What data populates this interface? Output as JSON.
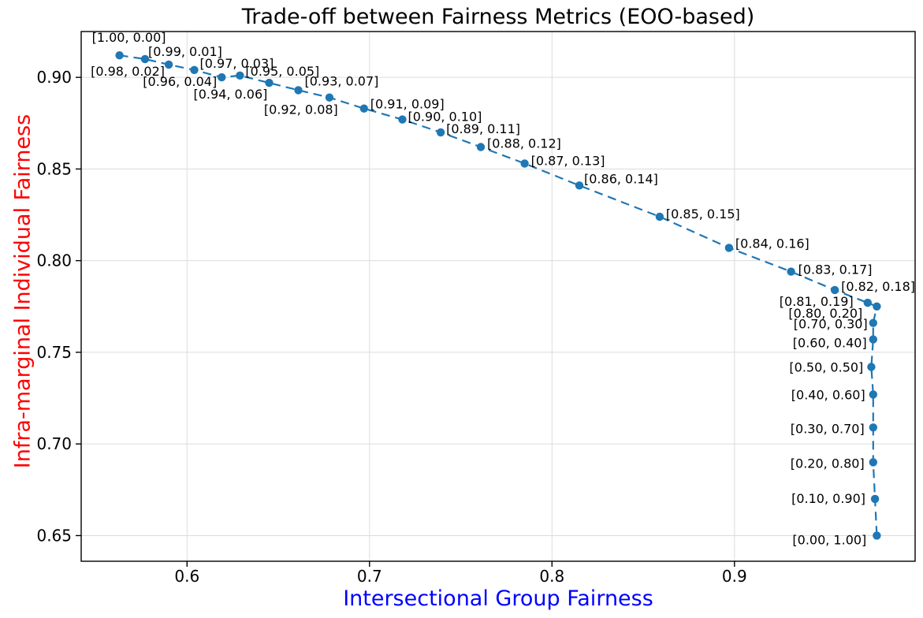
{
  "chart_data": {
    "type": "scatter",
    "title": "Trade-off between Fairness Metrics (EOO-based)",
    "xlabel": "Intersectional Group Fairness",
    "ylabel": "Infra-marginal Individual Fairness",
    "xlabel_color": "#0000ff",
    "ylabel_color": "#ff0000",
    "line_color": "#1f77b4",
    "marker_color": "#1f77b4",
    "annotation_color": "#000000",
    "grid": true,
    "grid_color": "#dcdcdc",
    "line_style": "dashed",
    "legend": "none",
    "xlim": [
      0.542,
      0.999
    ],
    "ylim": [
      0.636,
      0.925
    ],
    "x_ticks": [
      0.6,
      0.7,
      0.8,
      0.9
    ],
    "x_tick_labels": [
      "0.6",
      "0.7",
      "0.8",
      "0.9"
    ],
    "y_ticks": [
      0.65,
      0.7,
      0.75,
      0.8,
      0.85,
      0.9
    ],
    "y_tick_labels": [
      "0.65",
      "0.70",
      "0.75",
      "0.80",
      "0.85",
      "0.90"
    ],
    "points": [
      {
        "label": "[1.00, 0.00]",
        "weights": [
          1.0,
          0.0
        ],
        "x": 0.563,
        "y": 0.912,
        "label_offset": [
          -35,
          -30
        ]
      },
      {
        "label": "[0.99, 0.01]",
        "weights": [
          0.99,
          0.01
        ],
        "x": 0.577,
        "y": 0.91,
        "label_offset": [
          4,
          -17
        ]
      },
      {
        "label": "[0.98, 0.02]",
        "weights": [
          0.98,
          0.02
        ],
        "x": 0.59,
        "y": 0.907,
        "label_offset": [
          -99,
          1
        ]
      },
      {
        "label": "[0.97, 0.03]",
        "weights": [
          0.97,
          0.03
        ],
        "x": 0.604,
        "y": 0.904,
        "label_offset": [
          7,
          -16
        ]
      },
      {
        "label": "[0.96, 0.04]",
        "weights": [
          0.96,
          0.04
        ],
        "x": 0.619,
        "y": 0.9,
        "label_offset": [
          -100,
          -2
        ]
      },
      {
        "label": "[0.95, 0.05]",
        "weights": [
          0.95,
          0.05
        ],
        "x": 0.629,
        "y": 0.901,
        "label_offset": [
          7,
          -13
        ]
      },
      {
        "label": "[0.94, 0.06]",
        "weights": [
          0.94,
          0.06
        ],
        "x": 0.645,
        "y": 0.897,
        "label_offset": [
          -96,
          7
        ]
      },
      {
        "label": "[0.93, 0.07]",
        "weights": [
          0.93,
          0.07
        ],
        "x": 0.661,
        "y": 0.893,
        "label_offset": [
          8,
          -19
        ]
      },
      {
        "label": "[0.92, 0.08]",
        "weights": [
          0.92,
          0.08
        ],
        "x": 0.678,
        "y": 0.889,
        "label_offset": [
          -83,
          8
        ]
      },
      {
        "label": "[0.91, 0.09]",
        "weights": [
          0.91,
          0.09
        ],
        "x": 0.697,
        "y": 0.883,
        "label_offset": [
          8,
          -13
        ]
      },
      {
        "label": "[0.90, 0.10]",
        "weights": [
          0.9,
          0.1
        ],
        "x": 0.718,
        "y": 0.877,
        "label_offset": [
          7,
          -11
        ]
      },
      {
        "label": "[0.89, 0.11]",
        "weights": [
          0.89,
          0.11
        ],
        "x": 0.739,
        "y": 0.87,
        "label_offset": [
          7,
          -12
        ]
      },
      {
        "label": "[0.88, 0.12]",
        "weights": [
          0.88,
          0.12
        ],
        "x": 0.761,
        "y": 0.862,
        "label_offset": [
          8,
          -12
        ]
      },
      {
        "label": "[0.87, 0.13]",
        "weights": [
          0.87,
          0.13
        ],
        "x": 0.785,
        "y": 0.853,
        "label_offset": [
          8,
          -11
        ]
      },
      {
        "label": "[0.86, 0.14]",
        "weights": [
          0.86,
          0.14
        ],
        "x": 0.815,
        "y": 0.841,
        "label_offset": [
          6,
          -16
        ]
      },
      {
        "label": "[0.85, 0.15]",
        "weights": [
          0.85,
          0.15
        ],
        "x": 0.859,
        "y": 0.824,
        "label_offset": [
          8,
          -11
        ]
      },
      {
        "label": "[0.84, 0.16]",
        "weights": [
          0.84,
          0.16
        ],
        "x": 0.897,
        "y": 0.807,
        "label_offset": [
          8,
          -13
        ]
      },
      {
        "label": "[0.83, 0.17]",
        "weights": [
          0.83,
          0.17
        ],
        "x": 0.931,
        "y": 0.794,
        "label_offset": [
          9,
          -10
        ]
      },
      {
        "label": "[0.82, 0.18]",
        "weights": [
          0.82,
          0.18
        ],
        "x": 0.955,
        "y": 0.784,
        "label_offset": [
          8,
          -12
        ]
      },
      {
        "label": "[0.81, 0.19]",
        "weights": [
          0.81,
          0.19
        ],
        "x": 0.973,
        "y": 0.777,
        "label_offset": [
          -112,
          -9
        ]
      },
      {
        "label": "[0.80, 0.20]",
        "weights": [
          0.8,
          0.2
        ],
        "x": 0.978,
        "y": 0.775,
        "label_offset": [
          -112,
          1
        ]
      },
      {
        "label": "[0.70, 0.30]",
        "weights": [
          0.7,
          0.3
        ],
        "x": 0.976,
        "y": 0.766,
        "label_offset": [
          -101,
          -6
        ]
      },
      {
        "label": "[0.60, 0.40]",
        "weights": [
          0.6,
          0.4
        ],
        "x": 0.976,
        "y": 0.757,
        "label_offset": [
          -102,
          -3
        ]
      },
      {
        "label": "[0.50, 0.50]",
        "weights": [
          0.5,
          0.5
        ],
        "x": 0.975,
        "y": 0.742,
        "label_offset": [
          -104,
          -7
        ]
      },
      {
        "label": "[0.40, 0.60]",
        "weights": [
          0.4,
          0.6
        ],
        "x": 0.976,
        "y": 0.727,
        "label_offset": [
          -104,
          -7
        ]
      },
      {
        "label": "[0.30, 0.70]",
        "weights": [
          0.3,
          0.7
        ],
        "x": 0.976,
        "y": 0.709,
        "label_offset": [
          -105,
          -6
        ]
      },
      {
        "label": "[0.20, 0.80]",
        "weights": [
          0.2,
          0.8
        ],
        "x": 0.976,
        "y": 0.69,
        "label_offset": [
          -105,
          -6
        ]
      },
      {
        "label": "[0.10, 0.90]",
        "weights": [
          0.1,
          0.9
        ],
        "x": 0.977,
        "y": 0.67,
        "label_offset": [
          -106,
          -8
        ]
      },
      {
        "label": "[0.00, 1.00]",
        "weights": [
          0.0,
          1.0
        ],
        "x": 0.978,
        "y": 0.65,
        "label_offset": [
          -107,
          -2
        ]
      }
    ]
  }
}
